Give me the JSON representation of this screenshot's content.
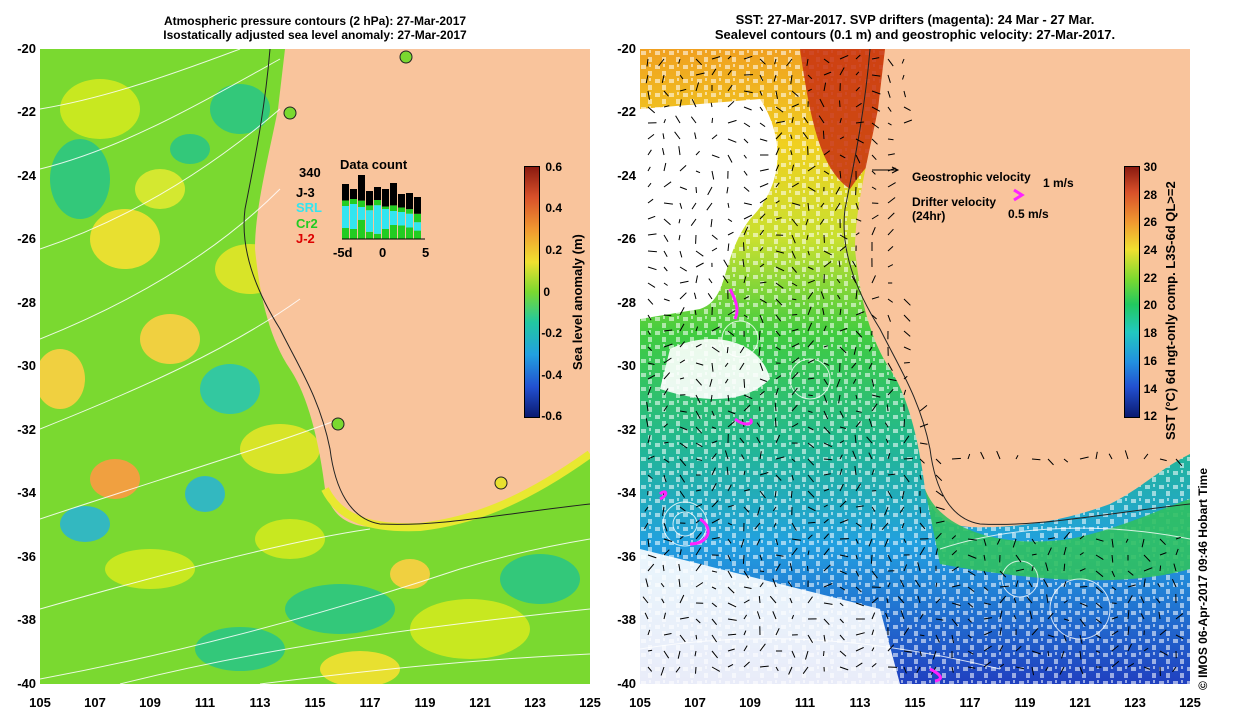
{
  "left_title": {
    "line1": "Atmospheric pressure contours (2 hPa): 27-Mar-2017",
    "line2": "Isostatically adjusted sea level anomaly: 27-Mar-2017"
  },
  "right_title": {
    "line1": "SST: 27-Mar-2017. SVP drifters (magenta): 24 Mar - 27 Mar.",
    "line2": "Sealevel contours (0.1 m) and geostrophic velocity: 27-Mar-2017."
  },
  "x_ticks": [
    "105",
    "107",
    "109",
    "111",
    "113",
    "115",
    "117",
    "119",
    "121",
    "123",
    "125"
  ],
  "y_ticks": [
    "-20",
    "-22",
    "-24",
    "-26",
    "-28",
    "-30",
    "-32",
    "-34",
    "-36",
    "-38",
    "-40"
  ],
  "sla_colorbar": {
    "label": "Sea level anomaly (m)",
    "ticks": [
      "0.6",
      "0.4",
      "0.2",
      "0",
      "-0.2",
      "-0.4",
      "-0.6"
    ]
  },
  "sst_colorbar": {
    "label": "SST (°C) 6d ngt-only comp. L3S-6d QL>=2",
    "ticks": [
      "30",
      "28",
      "26",
      "24",
      "22",
      "20",
      "18",
      "16",
      "14",
      "12"
    ]
  },
  "data_count": {
    "title": "Data count",
    "total": "340",
    "missions": [
      {
        "name": "J-3",
        "color": "#000000"
      },
      {
        "name": "SRL",
        "color": "#33e5f0"
      },
      {
        "name": "Cr2",
        "color": "#22cc22"
      },
      {
        "name": "J-2",
        "color": "#dd0000"
      }
    ],
    "axis_left": "-5d",
    "axis_mid": "0",
    "axis_right": "5"
  },
  "velocity_legend": {
    "geostrophic": "Geostrophic velocity",
    "geostrophic_scale": "1 m/s",
    "drifter": "Drifter velocity",
    "drifter_sub": "(24hr)",
    "drifter_scale": "0.5 m/s"
  },
  "credit": "© IMOS 06-Apr-2017 09:46 Hobart Time",
  "colors": {
    "land": "#f9c49c",
    "drifter": "#ff22ff",
    "sla_background": "#7ad930"
  }
}
